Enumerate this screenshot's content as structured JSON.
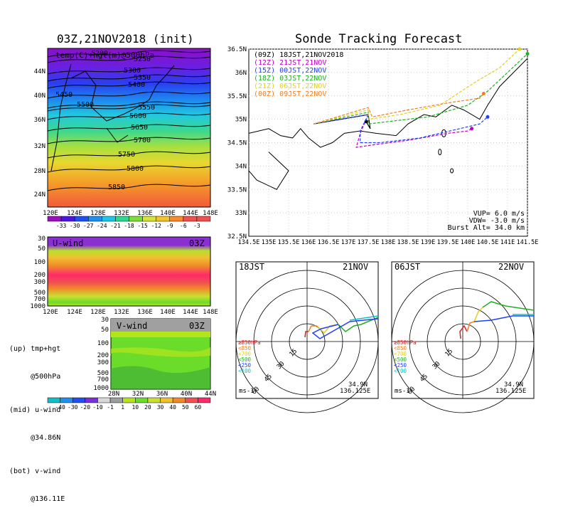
{
  "left": {
    "map_title": "03Z,21NOV2018 (init)",
    "map_subtitle": "temp(C)+hgt(m)@500hPa",
    "map_lat_ticks": [
      "44N",
      "40N",
      "36N",
      "32N",
      "28N",
      "24N"
    ],
    "map_lon_ticks": [
      "120E",
      "124E",
      "128E",
      "132E",
      "136E",
      "140E",
      "144E",
      "148E"
    ],
    "contour_labels": [
      "5200",
      "5250",
      "5300",
      "5350",
      "5400",
      "5450",
      "5500",
      "5550",
      "5600",
      "5650",
      "5700",
      "5750",
      "5800",
      "5850"
    ],
    "temp_colorbar": [
      "-33",
      "-30",
      "-27",
      "-24",
      "-21",
      "-18",
      "-15",
      "-12",
      "-9",
      "-6",
      "-3"
    ],
    "temp_colors": [
      "#7a00b8",
      "#4b17e0",
      "#2050f0",
      "#1f8ff0",
      "#20c5e8",
      "#2fd890",
      "#7ddc3a",
      "#d4e43a",
      "#f6c42a",
      "#f58a2f",
      "#f05050"
    ],
    "u_label": "U-wind",
    "u_time": "03Z",
    "u_pressure_ticks": [
      "30",
      "50",
      "100",
      "200",
      "300",
      "500",
      "700",
      "1000"
    ],
    "u_lon_ticks": [
      "120E",
      "124E",
      "128E",
      "132E",
      "136E",
      "140E",
      "144E",
      "148E"
    ],
    "v_label": "V-wind",
    "v_time": "03Z",
    "v_pressure_ticks": [
      "30",
      "50",
      "100",
      "200",
      "300",
      "500",
      "700",
      "1000"
    ],
    "v_lat_ticks": [
      "28N",
      "32N",
      "36N",
      "40N",
      "44N"
    ],
    "notes": [
      "(up) tmp+hgt",
      "     @500hPa",
      "(mid) u-wind",
      "     @34.86N",
      "(bot) v-wind",
      "     @136.11E"
    ],
    "wind_colorbar": [
      "-40",
      "-30",
      "-20",
      "-10",
      "-1",
      "1",
      "10",
      "20",
      "30",
      "40",
      "50",
      "60"
    ],
    "wind_colors": [
      "#10c0c8",
      "#1f8ff0",
      "#2050f0",
      "#7a2fd8",
      "#d8d8d8",
      "#9aa0a0",
      "#b4e41c",
      "#6cdc2a",
      "#c8e030",
      "#f0c030",
      "#f08a2a",
      "#f05050",
      "#ff2a6a"
    ]
  },
  "tracking": {
    "title": "Sonde Tracking Forecast",
    "legend": [
      {
        "tag": "(09Z)",
        "text": "18JST,21NOV2018",
        "color": "#000000"
      },
      {
        "tag": "(12Z)",
        "text": "21JST,21NOV",
        "color": "#c000c0"
      },
      {
        "tag": "(15Z)",
        "text": "00JST,22NOV",
        "color": "#2040ff"
      },
      {
        "tag": "(18Z)",
        "text": "03JST,22NOV",
        "color": "#20b020"
      },
      {
        "tag": "(21Z)",
        "text": "06JST,22NOV",
        "color": "#e0d020"
      },
      {
        "tag": "(00Z)",
        "text": "09JST,22NOV",
        "color": "#f08020"
      }
    ],
    "lat_ticks": [
      "36.5N",
      "36N",
      "35.5N",
      "35N",
      "34.5N",
      "34N",
      "33.5N",
      "33N",
      "32.5N"
    ],
    "lon_ticks": [
      "134.5E",
      "135E",
      "135.5E",
      "136E",
      "136.5E",
      "137E",
      "137.5E",
      "138E",
      "138.5E",
      "139E",
      "139.5E",
      "140E",
      "140.5E",
      "141E",
      "141.5E"
    ],
    "info": [
      "VUP= 6.0 m/s",
      "VDW= -3.0 m/s",
      "Burst Alt= 34.0 km"
    ]
  },
  "hodo_left": {
    "time": "18JST",
    "date": "21NOV",
    "ring_labels": [
      "15",
      "30",
      "45",
      "60"
    ],
    "levels": [
      "≥850hPa",
      "<850",
      "<700",
      "<500",
      "<250",
      "<100"
    ],
    "level_colors": [
      "#e02020",
      "#f08020",
      "#e0d020",
      "#20b020",
      "#2040ff",
      "#10c0c8"
    ],
    "lat": "34.9N",
    "lon": "136.125E",
    "unit": "ms-1"
  },
  "hodo_right": {
    "time": "06JST",
    "date": "22NOV",
    "ring_labels": [
      "15",
      "30",
      "45",
      "60"
    ],
    "levels": [
      "≥850hPa",
      "<850",
      "<700",
      "<500",
      "<250",
      "<100"
    ],
    "level_colors": [
      "#e02020",
      "#f08020",
      "#e0d020",
      "#20b020",
      "#2040ff",
      "#10c0c8"
    ],
    "lat": "34.9N",
    "lon": "136.125E",
    "unit": "ms-1"
  },
  "chart_data": [
    {
      "type": "line",
      "title": "Sonde Tracking Forecast",
      "xlabel": "",
      "ylabel": "",
      "xlim": [
        134.5,
        141.5
      ],
      "ylim": [
        32.5,
        36.5
      ],
      "series": [
        {
          "name": "(09Z) 18JST,21NOV2018",
          "x": [
            136.125,
            137.5,
            137.55,
            137.45
          ],
          "y": [
            34.9,
            35.1,
            34.8,
            34.95
          ]
        },
        {
          "name": "(12Z) 21JST,21NOV",
          "x": [
            136.125,
            137.5,
            137.3,
            137.2,
            137.6,
            138.5,
            139.5,
            140.0,
            140.1
          ],
          "y": [
            34.9,
            35.1,
            34.7,
            34.4,
            34.45,
            34.55,
            34.7,
            34.75,
            34.8
          ]
        },
        {
          "name": "(15Z) 00JST,22NOV",
          "x": [
            136.125,
            137.5,
            137.3,
            137.3,
            137.8,
            138.8,
            139.8,
            140.3,
            140.5
          ],
          "y": [
            34.9,
            35.1,
            34.75,
            34.5,
            34.5,
            34.6,
            34.8,
            34.9,
            35.05
          ]
        },
        {
          "name": "(18Z) 03JST,22NOV",
          "x": [
            136.125,
            137.5,
            137.5,
            138.0,
            139.0,
            140.0,
            140.5,
            141.0,
            141.5
          ],
          "y": [
            34.9,
            35.15,
            34.9,
            34.95,
            35.05,
            35.3,
            35.6,
            36.0,
            36.4
          ]
        },
        {
          "name": "(21Z) 06JST,22NOV",
          "x": [
            136.125,
            137.5,
            137.5,
            138.3,
            139.3,
            140.2,
            140.8,
            141.3
          ],
          "y": [
            34.9,
            35.2,
            35.0,
            35.1,
            35.3,
            35.8,
            36.1,
            36.5
          ]
        },
        {
          "name": "(00Z) 09JST,22NOV",
          "x": [
            136.125,
            137.5,
            137.6,
            138.5,
            139.5,
            140.3,
            140.4
          ],
          "y": [
            34.9,
            35.25,
            35.05,
            35.2,
            35.35,
            35.45,
            35.55
          ]
        }
      ]
    }
  ]
}
